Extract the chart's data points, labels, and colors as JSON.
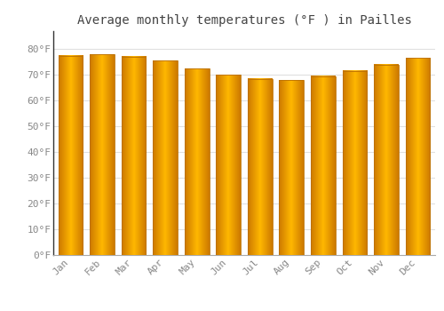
{
  "title": "Average monthly temperatures (°F ) in Pailles",
  "months": [
    "Jan",
    "Feb",
    "Mar",
    "Apr",
    "May",
    "Jun",
    "Jul",
    "Aug",
    "Sep",
    "Oct",
    "Nov",
    "Dec"
  ],
  "values": [
    77.5,
    78.0,
    77.0,
    75.5,
    72.5,
    70.0,
    68.5,
    68.0,
    69.5,
    71.5,
    74.0,
    76.5
  ],
  "bar_color_left": "#E07800",
  "bar_color_center": "#FFB800",
  "bar_color_right": "#E07800",
  "background_color": "#FFFFFF",
  "plot_bg_color": "#FFFFFF",
  "grid_color": "#E0E0E0",
  "ylim": [
    0,
    87
  ],
  "yticks": [
    0,
    10,
    20,
    30,
    40,
    50,
    60,
    70,
    80
  ],
  "ytick_labels": [
    "0°F",
    "10°F",
    "20°F",
    "30°F",
    "40°F",
    "50°F",
    "60°F",
    "70°F",
    "80°F"
  ],
  "title_fontsize": 10,
  "tick_fontsize": 8,
  "title_color": "#444444",
  "tick_color": "#888888",
  "left_spine_color": "#333333"
}
